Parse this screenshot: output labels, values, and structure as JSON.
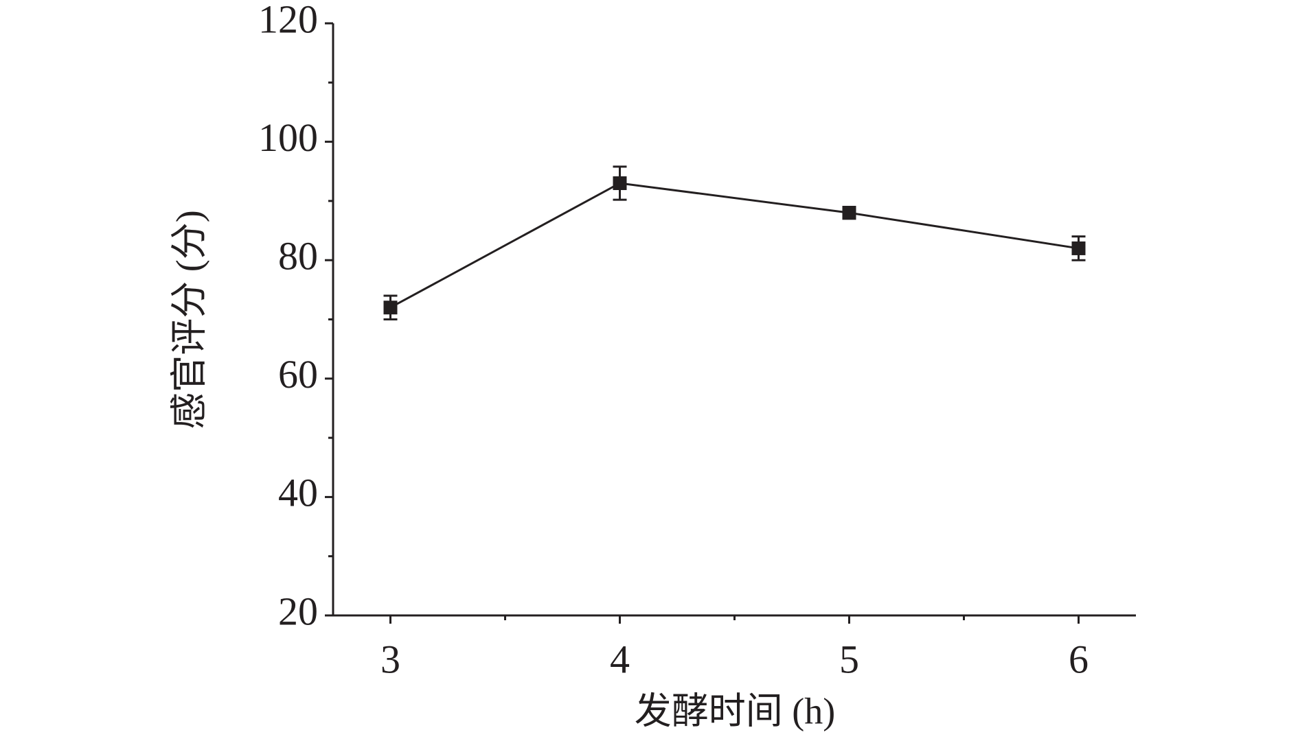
{
  "chart_data": {
    "type": "line",
    "x_label": "发酵时间 (h)",
    "y_label": "感官评分 (分)",
    "x": [
      3,
      4,
      5,
      6
    ],
    "values": [
      72,
      93,
      88,
      82
    ],
    "errors": [
      2,
      2.8,
      1,
      2
    ],
    "color": "#231f20",
    "xlim": [
      2.75,
      6.25
    ],
    "xticks": [
      3,
      4,
      5,
      6
    ],
    "ylim": [
      20,
      120
    ],
    "yticks": [
      20,
      40,
      60,
      80,
      100,
      120
    ],
    "minor_ticks": true,
    "grid": false
  }
}
